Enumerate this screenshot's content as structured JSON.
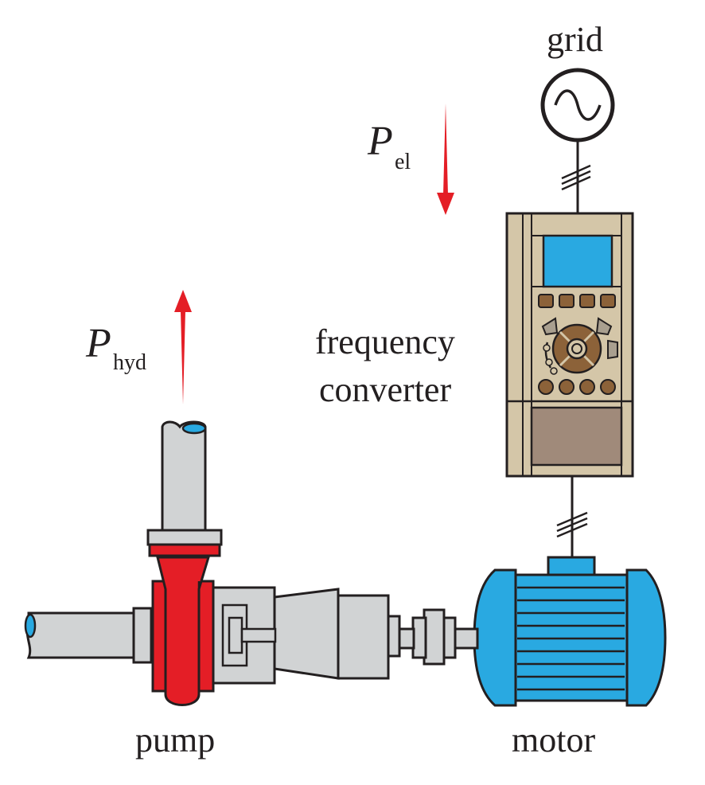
{
  "labels": {
    "grid": "grid",
    "p_el_symbol": "P",
    "p_el_subscript": "el",
    "p_hyd_symbol": "P",
    "p_hyd_subscript": "hyd",
    "frequency_converter_line1": "frequency",
    "frequency_converter_line2": "converter",
    "pump": "pump",
    "motor": "motor"
  },
  "colors": {
    "outline": "#231f20",
    "pump_red": "#e41e26",
    "motor_blue": "#29a9e1",
    "pipe_grey": "#d1d3d4",
    "converter_beige": "#d4c6a8",
    "converter_button_brown": "#8c6239",
    "converter_lower_panel": "#a08a7a",
    "arrow_red": "#e41e26"
  }
}
